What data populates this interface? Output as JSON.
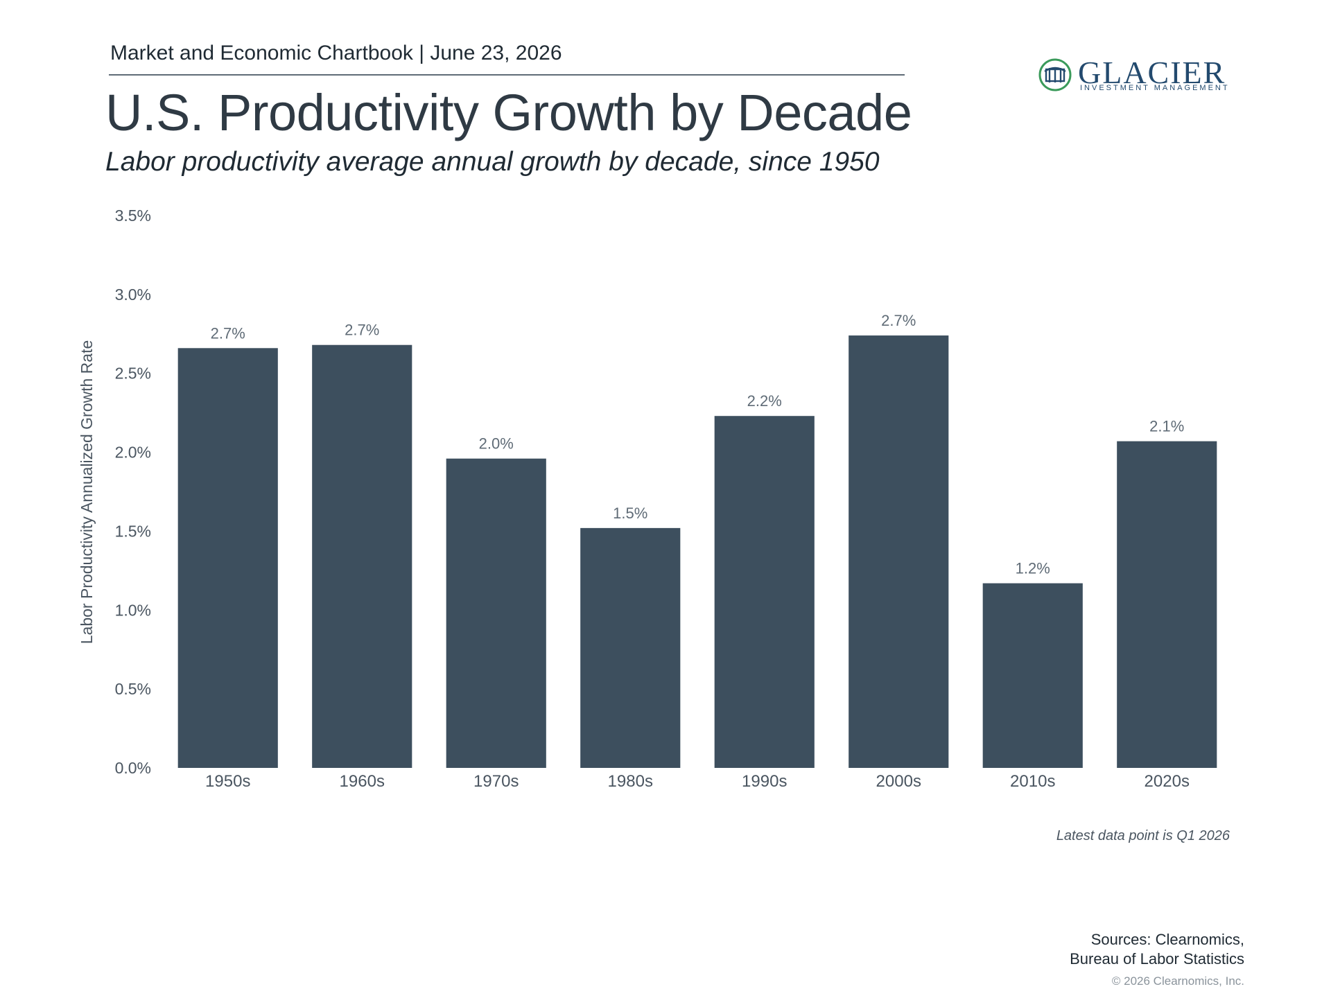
{
  "header": {
    "publication": "Market and Economic Chartbook | June 23, 2026"
  },
  "title": "U.S. Productivity Growth by Decade",
  "subtitle": "Labor productivity average annual growth by decade, since 1950",
  "logo": {
    "name": "GLACIER",
    "tagline": "INVESTMENT MANAGEMENT",
    "icon": "glacier-building-icon",
    "colors": {
      "name": "#234a6e",
      "ring": "#3a9a5a"
    }
  },
  "chart_data": {
    "type": "bar",
    "categories": [
      "1950s",
      "1960s",
      "1970s",
      "1980s",
      "1990s",
      "2000s",
      "2010s",
      "2020s"
    ],
    "values": [
      2.66,
      2.68,
      1.96,
      1.52,
      2.23,
      2.74,
      1.17,
      2.07
    ],
    "data_labels": [
      "2.7%",
      "2.7%",
      "2.0%",
      "1.5%",
      "2.2%",
      "2.7%",
      "1.2%",
      "2.1%"
    ],
    "ylabel": "Labor Productivity Annualized Growth Rate",
    "xlabel": "",
    "ylim": [
      0,
      3.5
    ],
    "yticks": [
      0,
      0.5,
      1,
      1.5,
      2,
      2.5,
      3,
      3.5
    ],
    "ytick_labels": [
      "0.0%",
      "0.5%",
      "1.0%",
      "1.5%",
      "2.0%",
      "2.5%",
      "3.0%",
      "3.5%"
    ],
    "grid": false,
    "colors": {
      "bar": "#3d4f5e",
      "data_label": "#5f6b76",
      "axis_text": "#4a5560"
    }
  },
  "footnote": "Latest data point is Q1 2026",
  "sources": {
    "line1": "Sources: Clearnomics,",
    "line2": "Bureau of Labor Statistics"
  },
  "copyright": "© 2026 Clearnomics, Inc."
}
